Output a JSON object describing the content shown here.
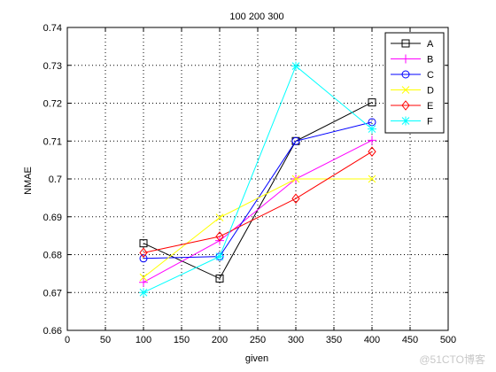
{
  "chart_data": {
    "type": "line",
    "title": "100 200 300",
    "xlabel": "given",
    "ylabel": "NMAE",
    "xlim": [
      0,
      500
    ],
    "ylim": [
      0.66,
      0.74
    ],
    "xticks": [
      0,
      50,
      100,
      150,
      200,
      250,
      300,
      350,
      400,
      450,
      500
    ],
    "yticks": [
      0.66,
      0.67,
      0.68,
      0.69,
      0.7,
      0.71,
      0.72,
      0.73,
      0.74
    ],
    "xtick_labels": [
      "0",
      "50",
      "100",
      "150",
      "200",
      "250",
      "300",
      "350",
      "400",
      "450",
      "500"
    ],
    "ytick_labels": [
      "0.66",
      "0.67",
      "0.68",
      "0.69",
      "0.7",
      "0.71",
      "0.72",
      "0.73",
      "0.74"
    ],
    "grid": true,
    "legend_position": "top-right",
    "x": [
      100,
      200,
      300,
      400
    ],
    "series": [
      {
        "name": "A",
        "values": [
          0.683,
          0.6737,
          0.71,
          0.7202
        ],
        "color": "#000000",
        "marker": "square"
      },
      {
        "name": "B",
        "values": [
          0.6727,
          0.6837,
          0.7,
          0.7102
        ],
        "color": "#ff00ff",
        "marker": "plus"
      },
      {
        "name": "C",
        "values": [
          0.679,
          0.6795,
          0.71,
          0.715
        ],
        "color": "#0000ff",
        "marker": "circle"
      },
      {
        "name": "D",
        "values": [
          0.674,
          0.6898,
          0.7,
          0.7
        ],
        "color": "#ffff00",
        "marker": "x"
      },
      {
        "name": "E",
        "values": [
          0.6805,
          0.6848,
          0.6948,
          0.7072
        ],
        "color": "#ff0000",
        "marker": "diamond"
      },
      {
        "name": "F",
        "values": [
          0.67,
          0.6795,
          0.7298,
          0.7132
        ],
        "color": "#00ffff",
        "marker": "star"
      }
    ]
  },
  "watermark": "@51CTO博客"
}
